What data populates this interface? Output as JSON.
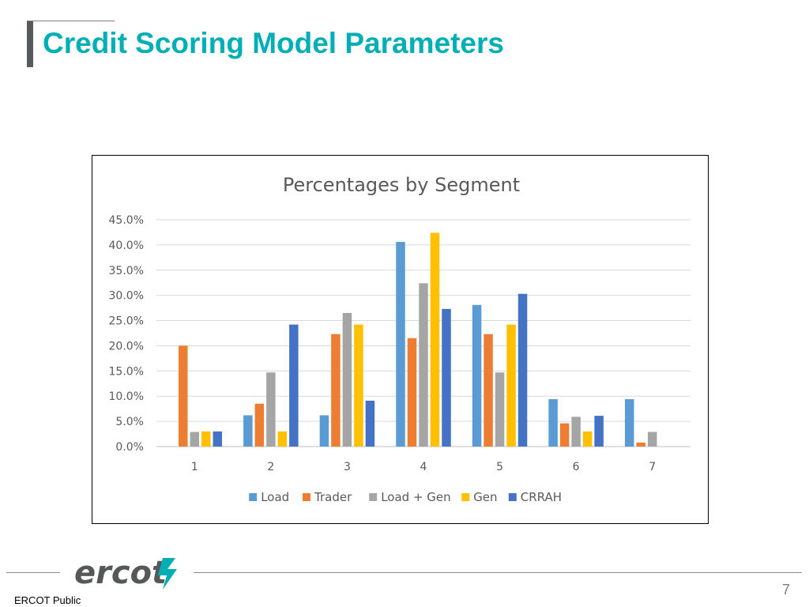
{
  "slide": {
    "title": "Credit Scoring Model Parameters",
    "page_number": "7",
    "classification": "ERCOT Public",
    "logo_text": "ercot"
  },
  "colors": {
    "title": "#00aeb5",
    "Load": "#5b9bd5",
    "Trader": "#ed7d31",
    "Load + Gen": "#a5a5a5",
    "Gen": "#ffc000",
    "CRRAH": "#4472c4",
    "logo_accent": "#00aeb5"
  },
  "chart_data": {
    "type": "bar",
    "title": "Percentages by Segment",
    "xlabel": "",
    "ylabel": "",
    "categories": [
      "1",
      "2",
      "3",
      "4",
      "5",
      "6",
      "7"
    ],
    "ylim": [
      0,
      45
    ],
    "yticks": [
      "0.0%",
      "5.0%",
      "10.0%",
      "15.0%",
      "20.0%",
      "25.0%",
      "30.0%",
      "35.0%",
      "40.0%",
      "45.0%"
    ],
    "grid": true,
    "legend_position": "bottom",
    "series": [
      {
        "name": "Load",
        "values": [
          0,
          6.2,
          6.2,
          40.6,
          28.1,
          9.4,
          9.4
        ]
      },
      {
        "name": "Trader",
        "values": [
          20.0,
          8.5,
          22.3,
          21.5,
          22.3,
          4.6,
          0.8
        ]
      },
      {
        "name": "Load + Gen",
        "values": [
          2.9,
          14.7,
          26.5,
          32.4,
          14.7,
          5.9,
          2.9
        ]
      },
      {
        "name": "Gen",
        "values": [
          3.0,
          3.0,
          24.2,
          42.4,
          24.2,
          3.0,
          0
        ]
      },
      {
        "name": "CRRAH",
        "values": [
          3.0,
          24.2,
          9.1,
          27.3,
          30.3,
          6.1,
          0
        ]
      }
    ]
  }
}
